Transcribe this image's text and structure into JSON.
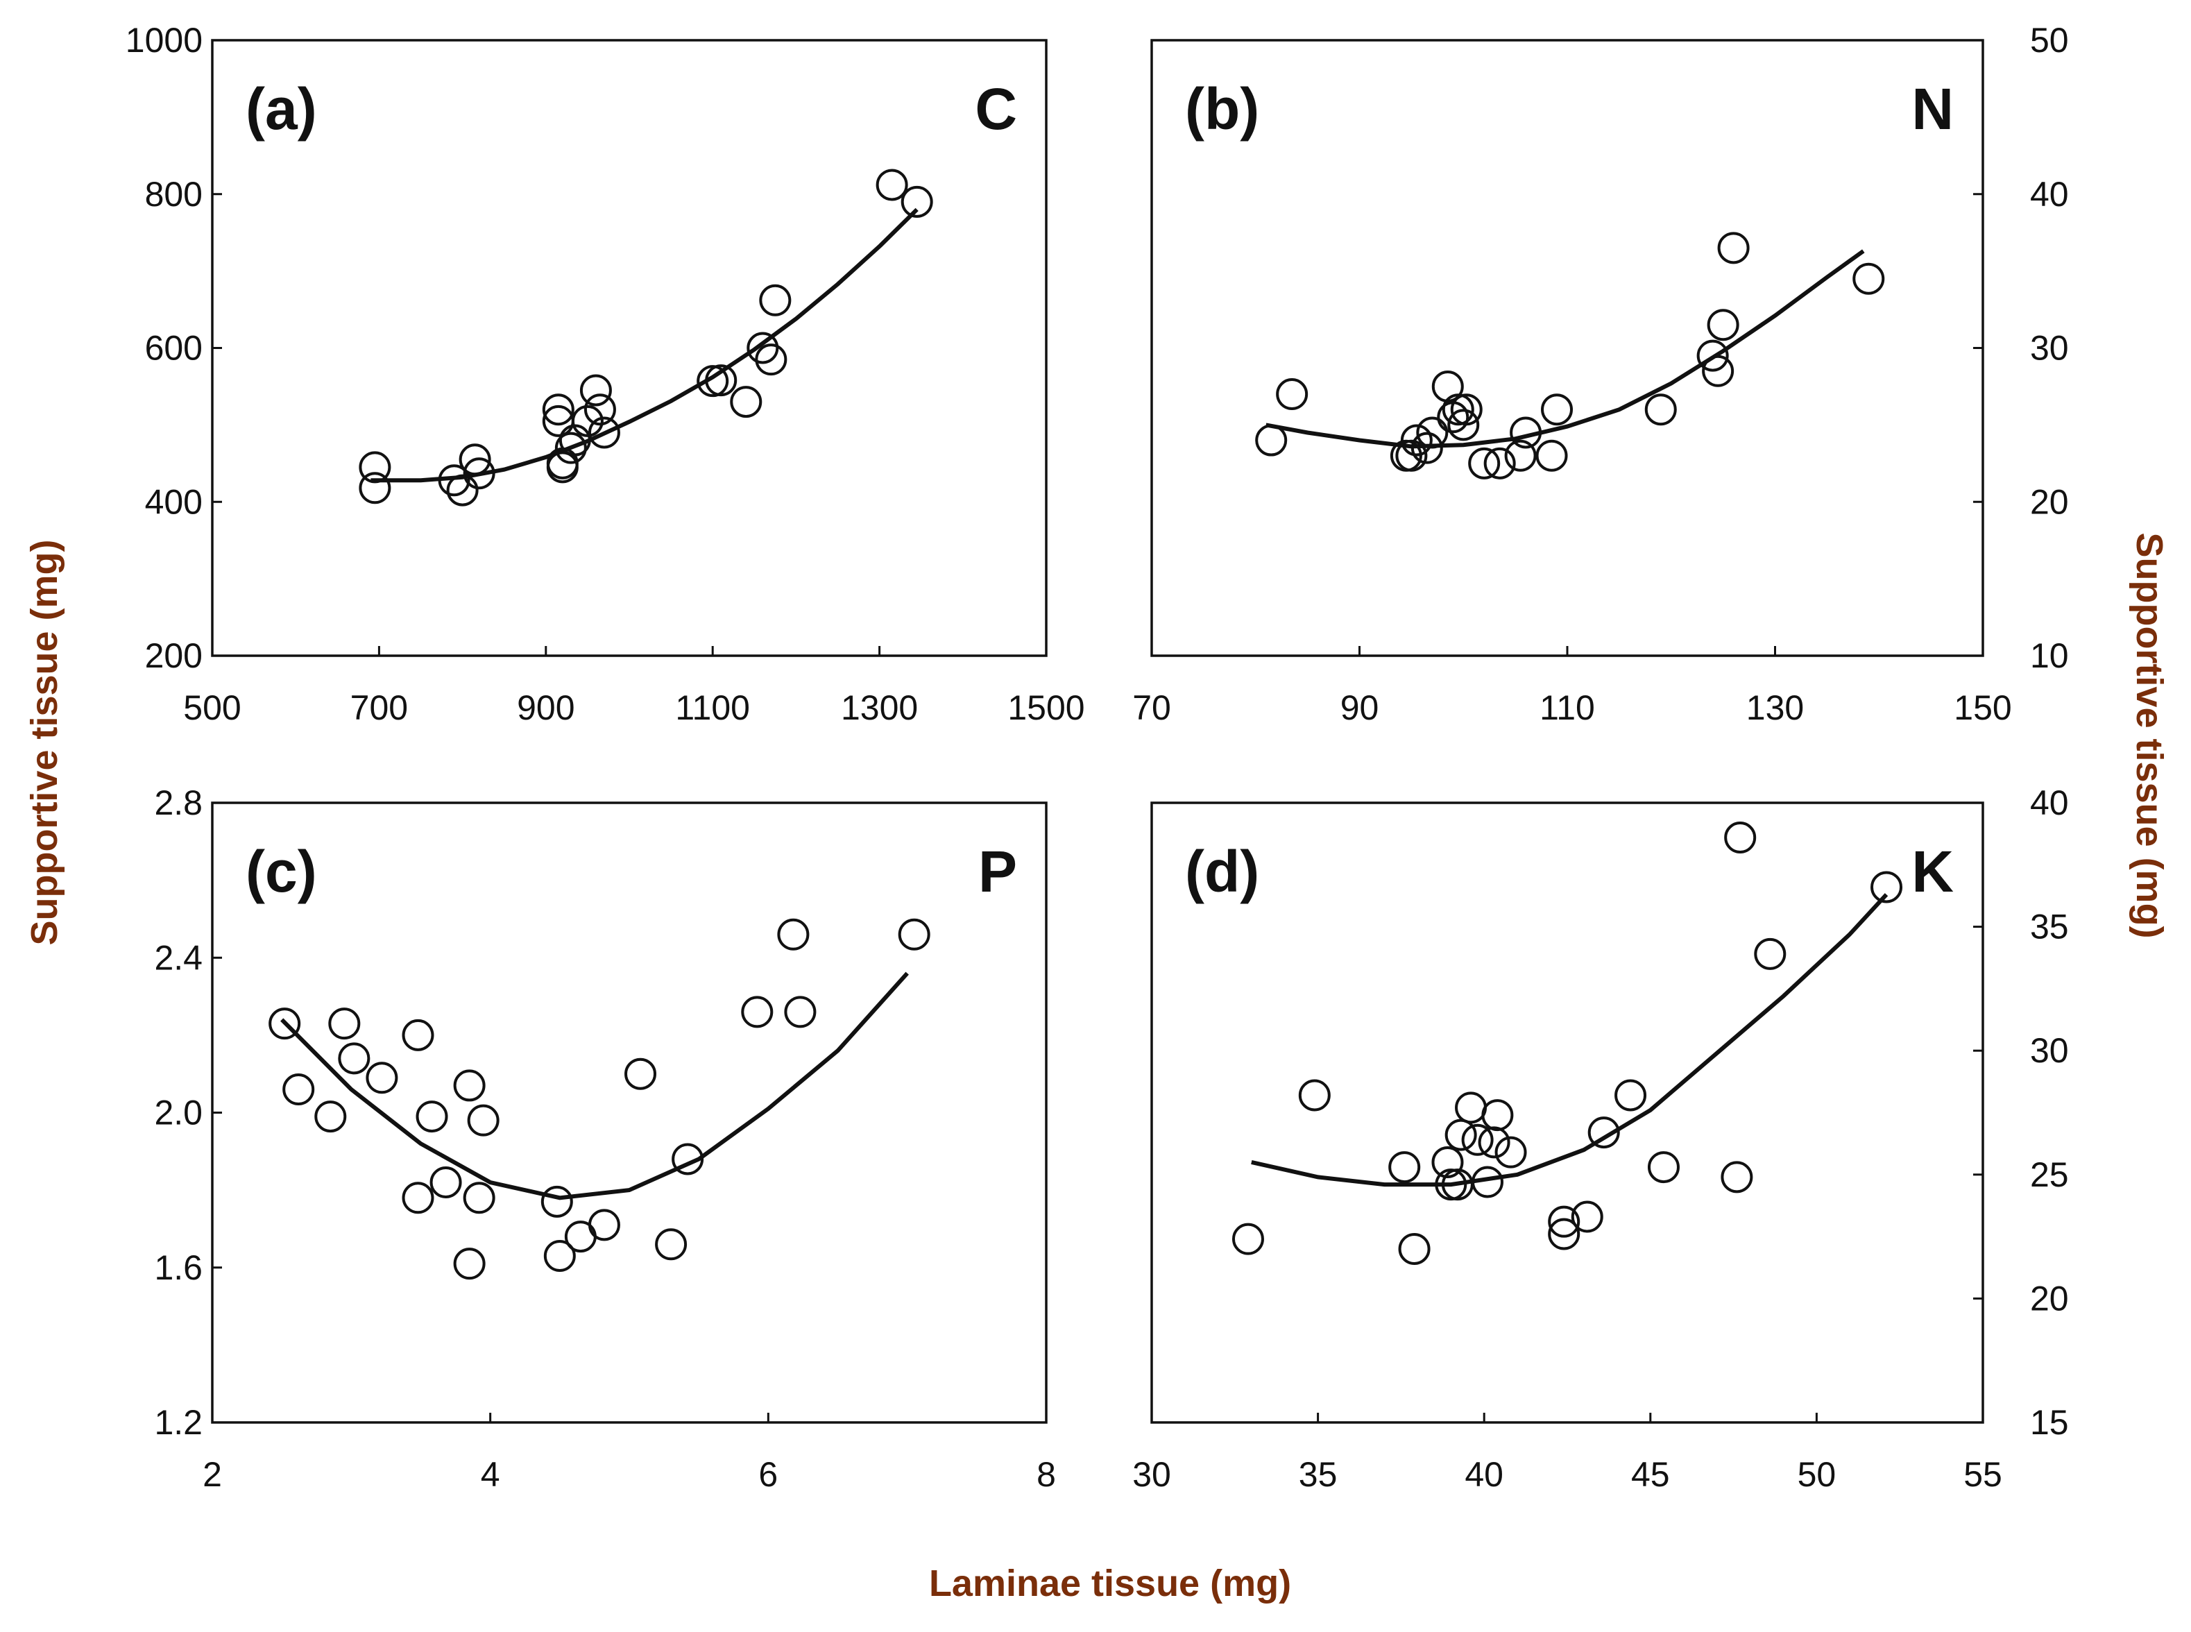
{
  "figure": {
    "xlabel": "Laminae tissue (mg)",
    "ylabel_left": "Supportive tissue (mg)",
    "ylabel_right": "Supportive tissue (mg)"
  },
  "chart_data": [
    {
      "type": "scatter",
      "id": "a",
      "panel_label": "(a)",
      "element": "C",
      "xlim": [
        500,
        1500
      ],
      "ylim": [
        200,
        1000
      ],
      "xticks": [
        500,
        700,
        900,
        1100,
        1300,
        1500
      ],
      "yticks": [
        200,
        400,
        600,
        800,
        1000
      ],
      "x_tick_labels": [
        "500",
        "700",
        "900",
        "1100",
        "1300",
        "1500"
      ],
      "y_tick_labels": [
        "200",
        "400",
        "600",
        "800",
        "1000"
      ],
      "y_axis_side": "left",
      "points": [
        [
          695,
          445
        ],
        [
          695,
          418
        ],
        [
          790,
          428
        ],
        [
          800,
          415
        ],
        [
          815,
          455
        ],
        [
          820,
          437
        ],
        [
          915,
          520
        ],
        [
          915,
          505
        ],
        [
          920,
          450
        ],
        [
          920,
          445
        ],
        [
          930,
          470
        ],
        [
          935,
          480
        ],
        [
          950,
          505
        ],
        [
          960,
          545
        ],
        [
          965,
          520
        ],
        [
          970,
          490
        ],
        [
          1100,
          557
        ],
        [
          1110,
          558
        ],
        [
          1140,
          530
        ],
        [
          1160,
          600
        ],
        [
          1170,
          585
        ],
        [
          1175,
          662
        ],
        [
          1315,
          812
        ],
        [
          1345,
          790
        ]
      ],
      "fit": [
        [
          690,
          428
        ],
        [
          750,
          428
        ],
        [
          800,
          432
        ],
        [
          850,
          442
        ],
        [
          900,
          458
        ],
        [
          950,
          479
        ],
        [
          1000,
          504
        ],
        [
          1050,
          531
        ],
        [
          1100,
          562
        ],
        [
          1150,
          598
        ],
        [
          1200,
          638
        ],
        [
          1250,
          683
        ],
        [
          1300,
          732
        ],
        [
          1345,
          780
        ]
      ]
    },
    {
      "type": "scatter",
      "id": "b",
      "panel_label": "(b)",
      "element": "N",
      "xlim": [
        70,
        150
      ],
      "ylim": [
        10,
        50
      ],
      "xticks": [
        70,
        90,
        110,
        130,
        150
      ],
      "yticks": [
        10,
        20,
        30,
        40,
        50
      ],
      "x_tick_labels": [
        "70",
        "90",
        "110",
        "130",
        "150"
      ],
      "y_tick_labels": [
        "10",
        "20",
        "30",
        "40",
        "50"
      ],
      "y_axis_side": "right",
      "points": [
        [
          81.5,
          24
        ],
        [
          83.5,
          27
        ],
        [
          94.5,
          23
        ],
        [
          95,
          23
        ],
        [
          95.5,
          24
        ],
        [
          96.5,
          23.5
        ],
        [
          97,
          24.5
        ],
        [
          98.5,
          27.5
        ],
        [
          99,
          25.5
        ],
        [
          99.5,
          26
        ],
        [
          100,
          25
        ],
        [
          100.3,
          26
        ],
        [
          102,
          22.5
        ],
        [
          103.5,
          22.5
        ],
        [
          105.5,
          23
        ],
        [
          106,
          24.5
        ],
        [
          108.5,
          23
        ],
        [
          109,
          26
        ],
        [
          119,
          26
        ],
        [
          124,
          29.5
        ],
        [
          124.5,
          28.5
        ],
        [
          125,
          31.5
        ],
        [
          126,
          36.5
        ],
        [
          139,
          34.5
        ]
      ],
      "fit": [
        [
          81,
          25
        ],
        [
          85,
          24.5
        ],
        [
          90,
          24.0
        ],
        [
          95,
          23.6
        ],
        [
          100,
          23.7
        ],
        [
          105,
          24.1
        ],
        [
          110,
          24.9
        ],
        [
          115,
          26.0
        ],
        [
          120,
          27.7
        ],
        [
          125,
          29.8
        ],
        [
          130,
          32.1
        ],
        [
          135,
          34.6
        ],
        [
          138.5,
          36.3
        ]
      ]
    },
    {
      "type": "scatter",
      "id": "c",
      "panel_label": "(c)",
      "element": "P",
      "xlim": [
        2,
        8
      ],
      "ylim": [
        1.2,
        2.8
      ],
      "xticks": [
        2,
        4,
        6,
        8
      ],
      "yticks": [
        1.2,
        1.6,
        2.0,
        2.4,
        2.8
      ],
      "x_tick_labels": [
        "2",
        "4",
        "6",
        "8"
      ],
      "y_tick_labels": [
        "1.2",
        "1.6",
        "2.0",
        "2.4",
        "2.8"
      ],
      "y_axis_side": "left",
      "points": [
        [
          2.52,
          2.23
        ],
        [
          2.62,
          2.06
        ],
        [
          2.85,
          1.99
        ],
        [
          2.95,
          2.23
        ],
        [
          3.02,
          2.14
        ],
        [
          3.22,
          2.09
        ],
        [
          3.48,
          1.78
        ],
        [
          3.48,
          2.2
        ],
        [
          3.58,
          1.99
        ],
        [
          3.68,
          1.82
        ],
        [
          3.85,
          2.07
        ],
        [
          3.85,
          1.61
        ],
        [
          3.92,
          1.78
        ],
        [
          3.95,
          1.98
        ],
        [
          4.48,
          1.77
        ],
        [
          4.5,
          1.63
        ],
        [
          4.65,
          1.68
        ],
        [
          4.82,
          1.71
        ],
        [
          5.08,
          2.1
        ],
        [
          5.3,
          1.66
        ],
        [
          5.42,
          1.88
        ],
        [
          5.92,
          2.26
        ],
        [
          6.18,
          2.46
        ],
        [
          6.23,
          2.26
        ],
        [
          7.05,
          2.46
        ]
      ],
      "fit": [
        [
          2.5,
          2.24
        ],
        [
          3.0,
          2.06
        ],
        [
          3.5,
          1.92
        ],
        [
          4.0,
          1.82
        ],
        [
          4.5,
          1.78
        ],
        [
          5.0,
          1.8
        ],
        [
          5.5,
          1.88
        ],
        [
          6.0,
          2.01
        ],
        [
          6.5,
          2.16
        ],
        [
          7.0,
          2.36
        ]
      ]
    },
    {
      "type": "scatter",
      "id": "d",
      "panel_label": "(d)",
      "element": "K",
      "xlim": [
        30,
        55
      ],
      "ylim": [
        15,
        40
      ],
      "xticks": [
        30,
        35,
        40,
        45,
        50,
        55
      ],
      "yticks": [
        15,
        20,
        25,
        30,
        35,
        40
      ],
      "x_tick_labels": [
        "30",
        "35",
        "40",
        "45",
        "50",
        "55"
      ],
      "y_tick_labels": [
        "15",
        "20",
        "25",
        "30",
        "35",
        "40"
      ],
      "y_axis_side": "right",
      "points": [
        [
          32.9,
          22.4
        ],
        [
          34.9,
          28.2
        ],
        [
          37.6,
          25.3
        ],
        [
          37.9,
          22
        ],
        [
          38.9,
          25.5
        ],
        [
          39,
          24.6
        ],
        [
          39.2,
          24.6
        ],
        [
          39.3,
          26.6
        ],
        [
          39.6,
          27.7
        ],
        [
          39.8,
          26.4
        ],
        [
          40.1,
          24.7
        ],
        [
          40.3,
          26.3
        ],
        [
          40.4,
          27.4
        ],
        [
          40.8,
          25.9
        ],
        [
          42.4,
          23.1
        ],
        [
          42.4,
          22.6
        ],
        [
          43.1,
          23.3
        ],
        [
          43.6,
          26.7
        ],
        [
          44.4,
          28.2
        ],
        [
          45.4,
          25.3
        ],
        [
          47.6,
          24.9
        ],
        [
          47.7,
          38.6
        ],
        [
          48.6,
          33.9
        ],
        [
          52.1,
          36.6
        ]
      ],
      "fit": [
        [
          33,
          25.5
        ],
        [
          35,
          24.9
        ],
        [
          37,
          24.6
        ],
        [
          39,
          24.6
        ],
        [
          41,
          25.0
        ],
        [
          43,
          26.0
        ],
        [
          45,
          27.6
        ],
        [
          47,
          29.9
        ],
        [
          49,
          32.2
        ],
        [
          51,
          34.7
        ],
        [
          52.1,
          36.3
        ]
      ]
    }
  ]
}
